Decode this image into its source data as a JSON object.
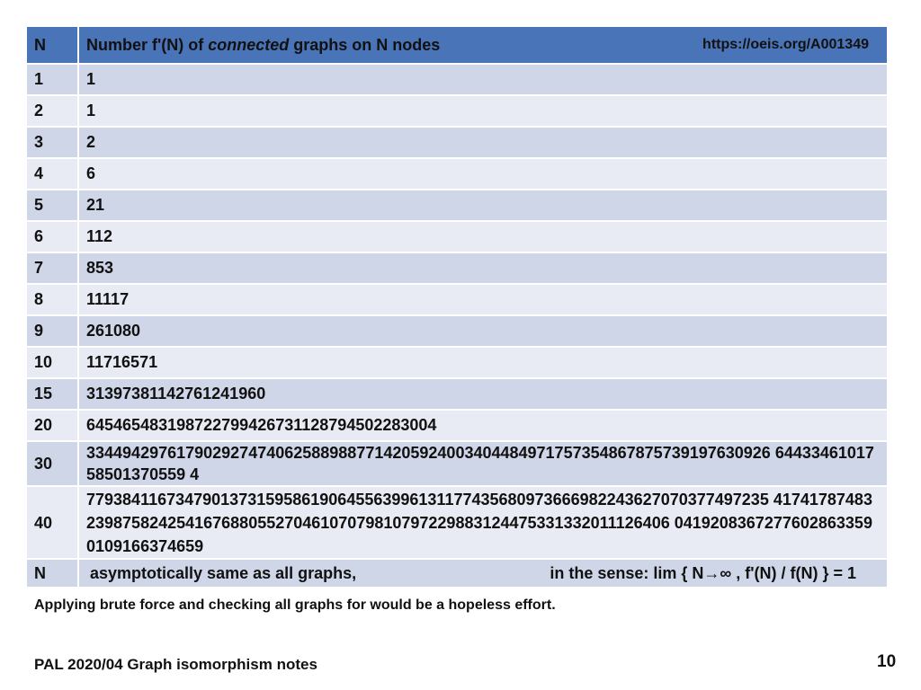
{
  "table": {
    "header": {
      "n": "N",
      "title_prefix": "Number f'(N)  of ",
      "title_italic": "connected",
      "title_suffix": " graphs on N nodes",
      "url": "https://oeis.org/A001349"
    },
    "rows": [
      {
        "n": "1",
        "value": "1"
      },
      {
        "n": "2",
        "value": "1"
      },
      {
        "n": "3",
        "value": "2"
      },
      {
        "n": "4",
        "value": "6"
      },
      {
        "n": "5",
        "value": "21"
      },
      {
        "n": "6",
        "value": "112"
      },
      {
        "n": "7",
        "value": "853"
      },
      {
        "n": "8",
        "value": "11117"
      },
      {
        "n": "9",
        "value": "261080"
      },
      {
        "n": "10",
        "value": "11716571"
      },
      {
        "n": "15",
        "value": "31397381142761241960"
      },
      {
        "n": "20",
        "value": "645465483198722799426731128794502283004"
      },
      {
        "n": "30",
        "value": "3344942976179029274740625889887714205924003404484971757354867875739197630926 6443346101758501370559 4"
      },
      {
        "n": "40",
        "value": "7793841167347901373159586190645563996131177435680973666982243627070377497235 4174178748323987582425416768805527046107079810797229883124475331332011126406 04192083672776028633590109166374659"
      }
    ],
    "last_row": {
      "n": "N",
      "text1": "asymptotically same as all graphs,",
      "text2": "in the sense:   lim { N→∞ ,  f'(N) / f(N) } = 1"
    }
  },
  "note": "Applying brute force and checking all graphs for would be a hopeless effort.",
  "footer": "PAL 2020/04 Graph isomorphism  notes",
  "page_number": "10"
}
